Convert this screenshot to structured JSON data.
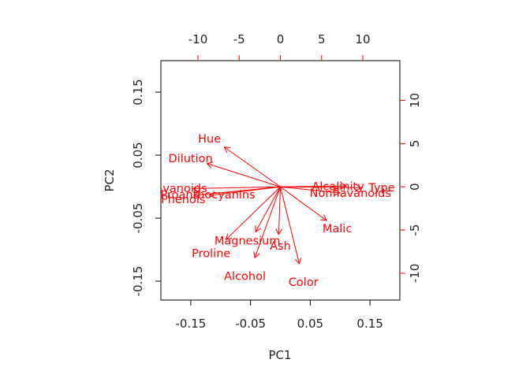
{
  "chart_data": {
    "type": "biplot",
    "xlabel": "PC1",
    "ylabel": "PC2",
    "xlim": [
      -0.2,
      0.2
    ],
    "ylim": [
      -0.18,
      0.2
    ],
    "x_ticks": [
      {
        "value": -0.15,
        "label": "-0.15"
      },
      {
        "value": -0.05,
        "label": "-0.05"
      },
      {
        "value": 0.05,
        "label": "0.05"
      },
      {
        "value": 0.15,
        "label": "0.15"
      }
    ],
    "y_ticks": [
      {
        "value": -0.15,
        "label": "-0.15"
      },
      {
        "value": -0.05,
        "label": "-0.05"
      },
      {
        "value": 0.05,
        "label": "0.05"
      },
      {
        "value": 0.15,
        "label": "0.15"
      }
    ],
    "top_axis": {
      "lim": [
        -14.5,
        14.5
      ],
      "ticks": [
        {
          "value": -10,
          "label": "-10"
        },
        {
          "value": -5,
          "label": "-5"
        },
        {
          "value": 0,
          "label": "0"
        },
        {
          "value": 5,
          "label": "5"
        },
        {
          "value": 10,
          "label": "10"
        }
      ]
    },
    "right_axis": {
      "lim": [
        -13.1,
        14.6
      ],
      "ticks": [
        {
          "value": -10,
          "label": "-10"
        },
        {
          "value": -5,
          "label": "-5"
        },
        {
          "value": 0,
          "label": "0"
        },
        {
          "value": 5,
          "label": "5"
        },
        {
          "value": 10,
          "label": "10"
        }
      ]
    },
    "color": "#ff0000",
    "loadings": [
      {
        "name": "Type",
        "x": 9.8,
        "y": -0.1,
        "label": "Type",
        "lx": 12.3,
        "ly": -0.05
      },
      {
        "name": "Alcohol",
        "x": -3.1,
        "y": -8.2,
        "label": "Alcohol",
        "lx": -4.3,
        "ly": -10.3
      },
      {
        "name": "Malic",
        "x": 5.6,
        "y": -3.9,
        "label": "Malic",
        "lx": 6.9,
        "ly": -4.8
      },
      {
        "name": "Ash",
        "x": -0.2,
        "y": -5.5,
        "label": "Ash",
        "lx": 0.0,
        "ly": -6.8
      },
      {
        "name": "Alcalinity",
        "x": 8.0,
        "y": 0.1,
        "label": "Alcalinity",
        "lx": 7.0,
        "ly": 0.05
      },
      {
        "name": "Magnesium",
        "x": -3.0,
        "y": -5.2,
        "label": "Magnesium",
        "lx": -4.0,
        "ly": -6.2
      },
      {
        "name": "Phenols",
        "x": -10.5,
        "y": -1.0,
        "label": "Phenols",
        "lx": -11.8,
        "ly": -1.45
      },
      {
        "name": "Flavanoids",
        "x": -10.6,
        "y": -0.2,
        "label": "Flavanoids",
        "lx": -12.6,
        "ly": -0.15
      },
      {
        "name": "Nonflavanoids",
        "x": 7.2,
        "y": -0.7,
        "label": "Nonflavanoids",
        "lx": 8.5,
        "ly": -0.7
      },
      {
        "name": "Proanthocyanins",
        "x": -8.6,
        "y": -1.0,
        "label": "Proanthocyanins",
        "lx": -8.8,
        "ly": -0.9
      },
      {
        "name": "Color",
        "x": 2.3,
        "y": -8.9,
        "label": "Color",
        "lx": 2.8,
        "ly": -11.0
      },
      {
        "name": "Hue",
        "x": -6.8,
        "y": 4.6,
        "label": "Hue",
        "lx": -8.6,
        "ly": 5.6
      },
      {
        "name": "Dilution",
        "x": -8.9,
        "y": 2.7,
        "label": "Dilution",
        "lx": -10.9,
        "ly": 3.3
      },
      {
        "name": "Proline",
        "x": -6.6,
        "y": -6.1,
        "label": "Proline",
        "lx": -8.4,
        "ly": -7.7
      }
    ]
  }
}
